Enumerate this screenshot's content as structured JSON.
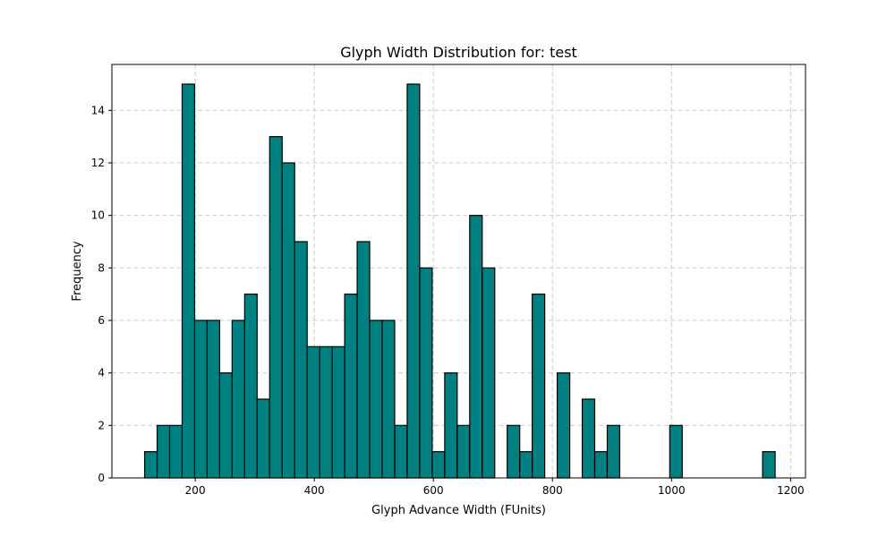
{
  "chart_data": {
    "type": "bar",
    "title": "Glyph Width Distribution for: test",
    "xlabel": "Glyph Advance Width (FUnits)",
    "ylabel": "Frequency",
    "xlim": [
      60,
      1225
    ],
    "ylim": [
      0,
      15.75
    ],
    "xticks": [
      200,
      400,
      600,
      800,
      1000,
      1200
    ],
    "yticks": [
      0,
      2,
      4,
      6,
      8,
      10,
      12,
      14
    ],
    "grid": true,
    "bin_width": 21,
    "bins": [
      {
        "x0": 115,
        "x1": 136,
        "count": 1
      },
      {
        "x0": 136,
        "x1": 157,
        "count": 2
      },
      {
        "x0": 157,
        "x1": 178,
        "count": 2
      },
      {
        "x0": 178,
        "x1": 199,
        "count": 15
      },
      {
        "x0": 199,
        "x1": 220,
        "count": 6
      },
      {
        "x0": 220,
        "x1": 241,
        "count": 6
      },
      {
        "x0": 241,
        "x1": 262,
        "count": 4
      },
      {
        "x0": 262,
        "x1": 283,
        "count": 6
      },
      {
        "x0": 283,
        "x1": 304,
        "count": 7
      },
      {
        "x0": 304,
        "x1": 325,
        "count": 3
      },
      {
        "x0": 325,
        "x1": 346,
        "count": 13
      },
      {
        "x0": 346,
        "x1": 367,
        "count": 12
      },
      {
        "x0": 367,
        "x1": 388,
        "count": 9
      },
      {
        "x0": 388,
        "x1": 409,
        "count": 5
      },
      {
        "x0": 409,
        "x1": 430,
        "count": 5
      },
      {
        "x0": 430,
        "x1": 451,
        "count": 5
      },
      {
        "x0": 451,
        "x1": 472,
        "count": 7
      },
      {
        "x0": 472,
        "x1": 493,
        "count": 9
      },
      {
        "x0": 493,
        "x1": 514,
        "count": 6
      },
      {
        "x0": 514,
        "x1": 535,
        "count": 6
      },
      {
        "x0": 535,
        "x1": 556,
        "count": 2
      },
      {
        "x0": 556,
        "x1": 577,
        "count": 15
      },
      {
        "x0": 577,
        "x1": 598,
        "count": 8
      },
      {
        "x0": 598,
        "x1": 619,
        "count": 1
      },
      {
        "x0": 619,
        "x1": 640,
        "count": 4
      },
      {
        "x0": 640,
        "x1": 661,
        "count": 2
      },
      {
        "x0": 661,
        "x1": 682,
        "count": 10
      },
      {
        "x0": 682,
        "x1": 703,
        "count": 8
      },
      {
        "x0": 724,
        "x1": 745,
        "count": 2
      },
      {
        "x0": 745,
        "x1": 766,
        "count": 1
      },
      {
        "x0": 766,
        "x1": 787,
        "count": 7
      },
      {
        "x0": 808,
        "x1": 829,
        "count": 4
      },
      {
        "x0": 850,
        "x1": 871,
        "count": 3
      },
      {
        "x0": 871,
        "x1": 892,
        "count": 1
      },
      {
        "x0": 892,
        "x1": 913,
        "count": 2
      },
      {
        "x0": 997,
        "x1": 1018,
        "count": 2
      },
      {
        "x0": 1153,
        "x1": 1174,
        "count": 1
      }
    ],
    "bar_color": "#008080",
    "edge_color": "#000000",
    "grid_color": "#cccccc"
  }
}
